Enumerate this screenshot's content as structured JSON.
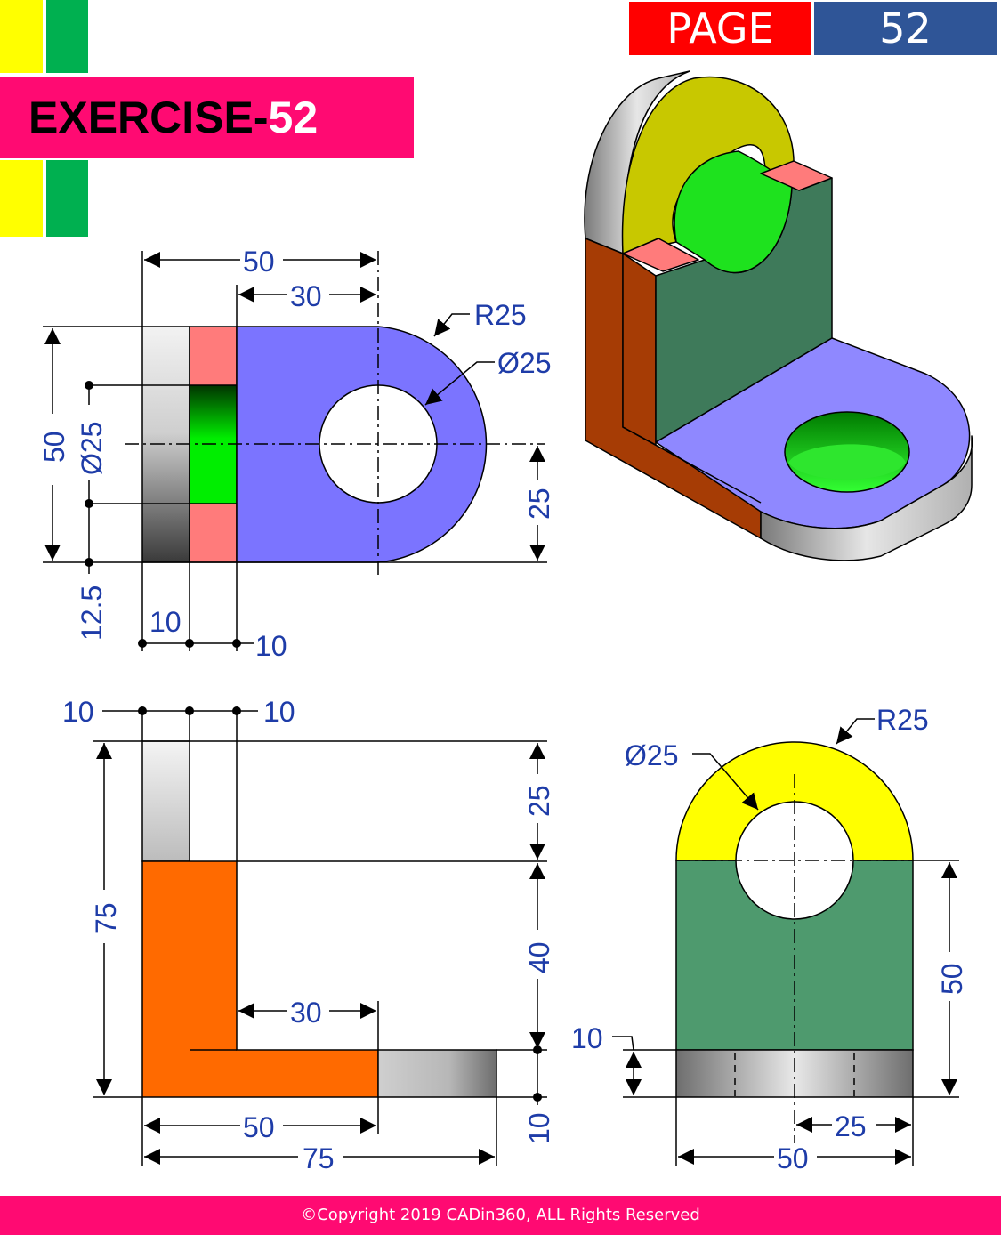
{
  "header": {
    "page_label": "PAGE",
    "page_number": "52",
    "exercise_prefix": "EXERCISE-",
    "exercise_number": "52"
  },
  "colors": {
    "yellow_stripe": "#ffff00",
    "green_stripe": "#00b050",
    "banner": "#ff0a72",
    "page_label_bg": "#ff0000",
    "page_number_bg": "#2f5597",
    "plate_blue": "#7b74ff",
    "salmon": "#ff7b7b",
    "hole_green": "#00ee00",
    "orange": "#ff6a00",
    "yellow_face": "#ffff00",
    "dark_green_face": "#4e9a6e",
    "dimension_text": "#1e3ca8"
  },
  "top_view": {
    "dim_overall_width": "50",
    "dim_plate_length": "30",
    "dim_radius": "R25",
    "dim_hole": "Ø25",
    "dim_height": "50",
    "dim_side_hole": "Ø25",
    "dim_center": "25",
    "dim_offset": "12.5",
    "dim_thk1": "10",
    "dim_thk2": "10"
  },
  "front_view": {
    "dim_thk_left": "10",
    "dim_thk_right": "10",
    "dim_total_height": "75",
    "dim_upper": "25",
    "dim_middle": "40",
    "dim_base_thk": "10",
    "dim_plate": "30",
    "dim_width_50": "50",
    "dim_width_75": "75"
  },
  "side_view": {
    "dim_radius": "R25",
    "dim_hole": "Ø25",
    "dim_height": "50",
    "dim_base": "10",
    "dim_half": "25",
    "dim_width": "50"
  },
  "footer": {
    "copyright": "©Copyright 2019 CADin360, ALL Rights Reserved"
  }
}
